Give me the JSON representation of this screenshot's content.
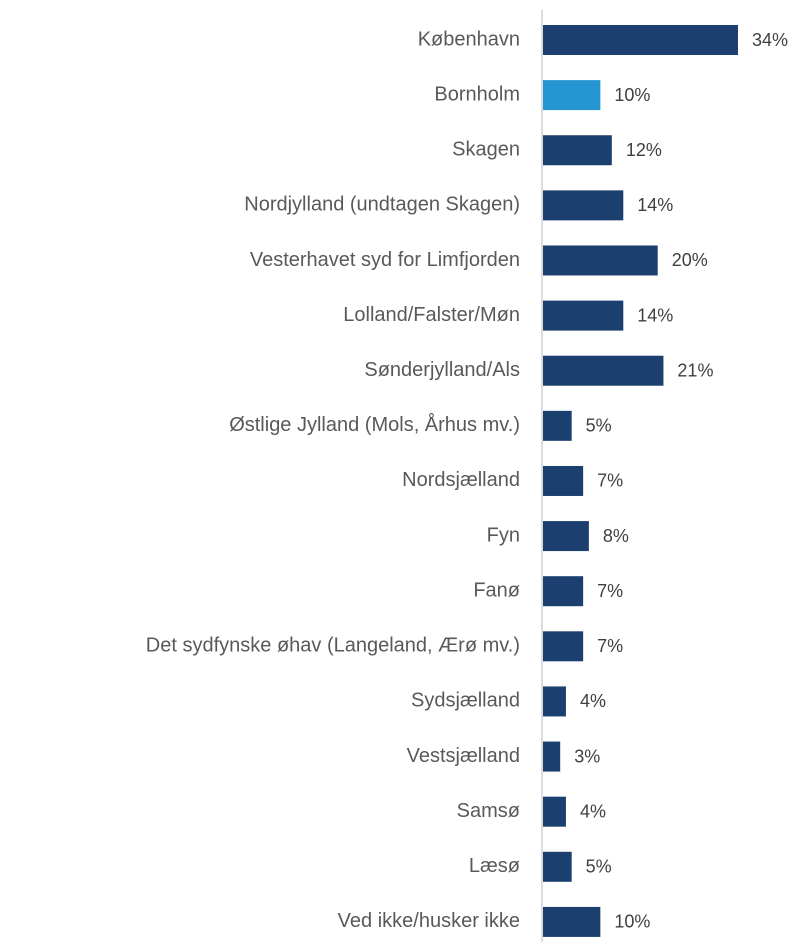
{
  "chart_data": {
    "type": "bar",
    "orientation": "horizontal",
    "categories": [
      "København",
      "Bornholm",
      "Skagen",
      "Nordjylland (undtagen Skagen)",
      "Vesterhavet syd for Limfjorden",
      "Lolland/Falster/Møn",
      "Sønderjylland/Als",
      "Østlige Jylland (Mols, Århus mv.)",
      "Nordsjælland",
      "Fyn",
      "Fanø",
      "Det sydfynske øhav (Langeland, Ærø mv.)",
      "Sydsjælland",
      "Vestsjælland",
      "Samsø",
      "Læsø",
      "Ved ikke/husker ikke"
    ],
    "values": [
      34,
      10,
      12,
      14,
      20,
      14,
      21,
      5,
      7,
      8,
      7,
      7,
      4,
      3,
      4,
      5,
      10
    ],
    "value_labels": [
      "34%",
      "10%",
      "12%",
      "14%",
      "20%",
      "14%",
      "21%",
      "5%",
      "7%",
      "8%",
      "7%",
      "7%",
      "4%",
      "3%",
      "4%",
      "5%",
      "10%"
    ],
    "colors": [
      "#1b3f6e",
      "#2596d1",
      "#1b3f6e",
      "#1b3f6e",
      "#1b3f6e",
      "#1b3f6e",
      "#1b3f6e",
      "#1b3f6e",
      "#1b3f6e",
      "#1b3f6e",
      "#1b3f6e",
      "#1b3f6e",
      "#1b3f6e",
      "#1b3f6e",
      "#1b3f6e",
      "#1b3f6e",
      "#1b3f6e"
    ],
    "xlim": [
      0,
      40
    ],
    "grid": false
  }
}
